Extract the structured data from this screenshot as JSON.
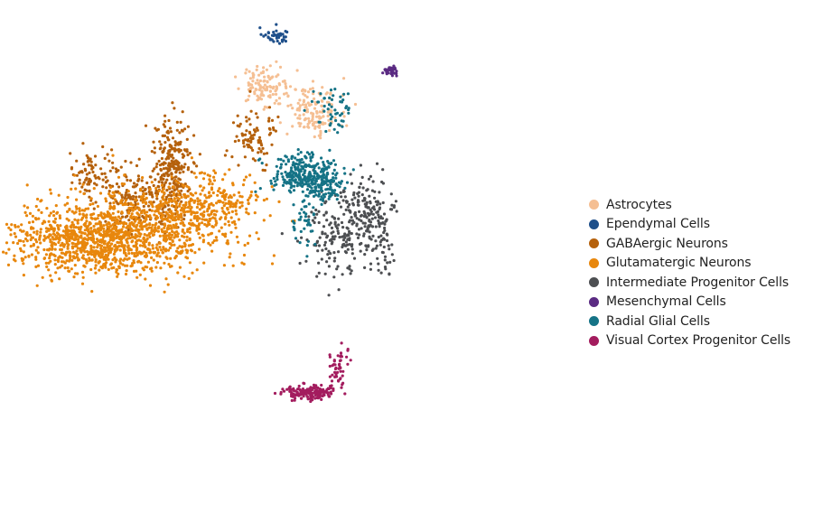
{
  "chart_data": {
    "type": "scatter",
    "title": "",
    "xlabel": "",
    "ylabel": "",
    "axes_visible": false,
    "grid": false,
    "xlim": [
      -10,
      10
    ],
    "ylim": [
      -10,
      10
    ],
    "legend_position": "right",
    "series": [
      {
        "name": "Astrocytes",
        "color": "#f5bf93",
        "clusters": [
          {
            "center": [
              -1.0,
              6.9
            ],
            "spread": [
              0.35,
              0.4
            ],
            "count": 90
          },
          {
            "center": [
              0.9,
              5.7
            ],
            "spread": [
              0.5,
              0.35
            ],
            "count": 110
          },
          {
            "center": [
              0.2,
              6.6
            ],
            "spread": [
              0.8,
              0.4
            ],
            "count": 60
          }
        ]
      },
      {
        "name": "Ependymal Cells",
        "color": "#1e4f8a",
        "clusters": [
          {
            "center": [
              -0.5,
              8.9
            ],
            "spread": [
              0.25,
              0.18
            ],
            "count": 40
          }
        ]
      },
      {
        "name": "GABAergic Neurons",
        "color": "#b5610c",
        "clusters": [
          {
            "center": [
              -4.2,
              3.6
            ],
            "spread": [
              0.35,
              1.0
            ],
            "count": 260
          },
          {
            "center": [
              -5.5,
              2.3
            ],
            "spread": [
              0.7,
              0.7
            ],
            "count": 180
          },
          {
            "center": [
              -7.2,
              3.3
            ],
            "spread": [
              0.35,
              0.5
            ],
            "count": 70
          },
          {
            "center": [
              -1.3,
              4.8
            ],
            "spread": [
              0.4,
              0.6
            ],
            "count": 90
          }
        ]
      },
      {
        "name": "Glutamatergic Neurons",
        "color": "#e8870d",
        "clusters": [
          {
            "center": [
              -7.0,
              0.6
            ],
            "spread": [
              1.5,
              0.7
            ],
            "count": 900
          },
          {
            "center": [
              -4.5,
              1.3
            ],
            "spread": [
              1.5,
              0.8
            ],
            "count": 600
          },
          {
            "center": [
              -2.6,
              2.2
            ],
            "spread": [
              0.8,
              0.6
            ],
            "count": 180
          }
        ]
      },
      {
        "name": "Intermediate Progenitor Cells",
        "color": "#4d4f52",
        "clusters": [
          {
            "center": [
              1.8,
              0.9
            ],
            "spread": [
              0.6,
              0.8
            ],
            "count": 170
          },
          {
            "center": [
              2.9,
              2.1
            ],
            "spread": [
              0.5,
              0.6
            ],
            "count": 120
          },
          {
            "center": [
              3.2,
              0.6
            ],
            "spread": [
              0.3,
              0.6
            ],
            "count": 60
          }
        ]
      },
      {
        "name": "Mesenchymal Cells",
        "color": "#5a2a82",
        "clusters": [
          {
            "center": [
              3.6,
              7.5
            ],
            "spread": [
              0.15,
              0.1
            ],
            "count": 40
          }
        ]
      },
      {
        "name": "Radial Glial Cells",
        "color": "#157386",
        "clusters": [
          {
            "center": [
              0.6,
              3.3
            ],
            "spread": [
              0.6,
              0.4
            ],
            "count": 280
          },
          {
            "center": [
              1.3,
              2.7
            ],
            "spread": [
              0.3,
              0.3
            ],
            "count": 70
          },
          {
            "center": [
              1.6,
              5.9
            ],
            "spread": [
              0.4,
              0.5
            ],
            "count": 50
          },
          {
            "center": [
              0.5,
              1.5
            ],
            "spread": [
              0.2,
              0.6
            ],
            "count": 40
          }
        ]
      },
      {
        "name": "Visual Cortex Progenitor Cells",
        "color": "#a31c5e",
        "clusters": [
          {
            "center": [
              0.7,
              -5.5
            ],
            "spread": [
              0.5,
              0.15
            ],
            "count": 160
          },
          {
            "center": [
              1.8,
              -4.5
            ],
            "spread": [
              0.2,
              0.5
            ],
            "count": 50
          }
        ]
      }
    ]
  }
}
